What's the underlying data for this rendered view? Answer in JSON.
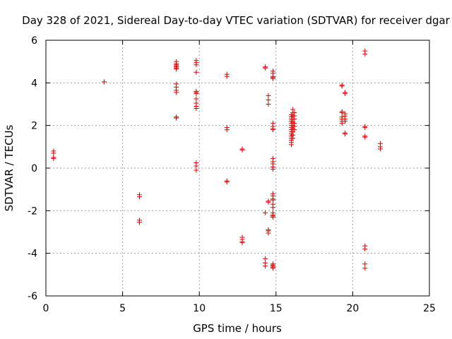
{
  "chart_data": {
    "type": "scatter",
    "title": "Day 328 of 2021, Sidereal Day-to-day VTEC variation (SDTVAR) for receiver dgar",
    "xlabel": "GPS time / hours",
    "ylabel": "SDTVAR / TECUs",
    "xlim": [
      0,
      25
    ],
    "ylim": [
      -6,
      6
    ],
    "xticks": [
      "0",
      "5",
      "10",
      "15",
      "20",
      "25"
    ],
    "yticks": [
      "-6",
      "-4",
      "-2",
      "0",
      "2",
      "4",
      "6"
    ],
    "grid": true,
    "marker": "plus",
    "color": "#e00000",
    "series": [
      {
        "name": "SDTVAR",
        "points": [
          [
            0.5,
            0.8
          ],
          [
            0.5,
            0.7
          ],
          [
            0.5,
            0.5
          ],
          [
            0.5,
            0.45
          ],
          [
            3.8,
            4.05
          ],
          [
            6.1,
            -1.25
          ],
          [
            6.1,
            -1.35
          ],
          [
            6.1,
            -2.45
          ],
          [
            6.1,
            -2.55
          ],
          [
            8.5,
            5.0
          ],
          [
            8.5,
            4.9
          ],
          [
            8.5,
            4.85
          ],
          [
            8.5,
            4.8
          ],
          [
            8.5,
            4.75
          ],
          [
            8.5,
            4.7
          ],
          [
            8.5,
            4.65
          ],
          [
            8.5,
            3.95
          ],
          [
            8.5,
            3.8
          ],
          [
            8.5,
            3.65
          ],
          [
            8.5,
            3.55
          ],
          [
            8.5,
            2.4
          ],
          [
            8.5,
            2.35
          ],
          [
            9.8,
            5.05
          ],
          [
            9.8,
            4.95
          ],
          [
            9.8,
            4.85
          ],
          [
            9.8,
            4.5
          ],
          [
            9.8,
            3.6
          ],
          [
            9.8,
            3.55
          ],
          [
            9.8,
            3.5
          ],
          [
            9.8,
            3.25
          ],
          [
            9.8,
            3.05
          ],
          [
            9.8,
            2.9
          ],
          [
            9.8,
            2.8
          ],
          [
            9.8,
            0.25
          ],
          [
            9.8,
            0.1
          ],
          [
            9.8,
            -0.1
          ],
          [
            11.8,
            4.4
          ],
          [
            11.8,
            4.3
          ],
          [
            11.8,
            1.9
          ],
          [
            11.8,
            1.8
          ],
          [
            11.8,
            -0.6
          ],
          [
            11.8,
            -0.65
          ],
          [
            12.8,
            0.9
          ],
          [
            12.8,
            0.85
          ],
          [
            12.8,
            -3.25
          ],
          [
            12.8,
            -3.35
          ],
          [
            12.8,
            -3.45
          ],
          [
            12.8,
            -3.5
          ],
          [
            14.3,
            4.75
          ],
          [
            14.3,
            4.7
          ],
          [
            14.3,
            -2.1
          ],
          [
            14.3,
            -4.25
          ],
          [
            14.3,
            -4.45
          ],
          [
            14.3,
            -4.6
          ],
          [
            14.5,
            3.4
          ],
          [
            14.5,
            3.2
          ],
          [
            14.5,
            3.0
          ],
          [
            14.5,
            -1.55
          ],
          [
            14.5,
            -1.6
          ],
          [
            14.5,
            -2.9
          ],
          [
            14.5,
            -2.95
          ],
          [
            14.5,
            -3.05
          ],
          [
            14.8,
            4.55
          ],
          [
            14.8,
            4.45
          ],
          [
            14.8,
            4.3
          ],
          [
            14.8,
            4.25
          ],
          [
            14.8,
            4.2
          ],
          [
            14.8,
            2.1
          ],
          [
            14.8,
            1.95
          ],
          [
            14.8,
            1.85
          ],
          [
            14.8,
            1.8
          ],
          [
            14.8,
            0.45
          ],
          [
            14.8,
            0.3
          ],
          [
            14.8,
            0.2
          ],
          [
            14.8,
            0.05
          ],
          [
            14.8,
            -0.05
          ],
          [
            14.8,
            -1.2
          ],
          [
            14.8,
            -1.3
          ],
          [
            14.8,
            -1.45
          ],
          [
            14.8,
            -1.5
          ],
          [
            14.8,
            -1.7
          ],
          [
            14.8,
            -1.85
          ],
          [
            14.8,
            -2.1
          ],
          [
            14.8,
            -2.2
          ],
          [
            14.8,
            -2.25
          ],
          [
            14.8,
            -2.3
          ],
          [
            14.8,
            -4.5
          ],
          [
            14.8,
            -4.55
          ],
          [
            14.8,
            -4.6
          ],
          [
            14.8,
            -4.65
          ],
          [
            14.8,
            -4.7
          ],
          [
            16.0,
            2.5
          ],
          [
            16.0,
            2.4
          ],
          [
            16.0,
            2.3
          ],
          [
            16.0,
            2.2
          ],
          [
            16.0,
            2.1
          ],
          [
            16.0,
            2.0
          ],
          [
            16.0,
            1.9
          ],
          [
            16.0,
            1.8
          ],
          [
            16.0,
            1.7
          ],
          [
            16.0,
            1.6
          ],
          [
            16.0,
            1.5
          ],
          [
            16.0,
            1.4
          ],
          [
            16.0,
            1.3
          ],
          [
            16.0,
            1.2
          ],
          [
            16.0,
            1.1
          ],
          [
            16.1,
            2.75
          ],
          [
            16.1,
            2.6
          ],
          [
            16.1,
            2.45
          ],
          [
            16.1,
            2.3
          ],
          [
            16.1,
            2.15
          ],
          [
            16.1,
            2.0
          ],
          [
            16.1,
            1.85
          ],
          [
            16.1,
            1.7
          ],
          [
            16.1,
            1.55
          ],
          [
            16.1,
            1.4
          ],
          [
            16.2,
            2.6
          ],
          [
            16.2,
            2.45
          ],
          [
            16.2,
            2.3
          ],
          [
            16.2,
            2.1
          ],
          [
            16.2,
            1.95
          ],
          [
            16.2,
            1.8
          ],
          [
            19.3,
            3.9
          ],
          [
            19.3,
            3.85
          ],
          [
            19.3,
            2.65
          ],
          [
            19.3,
            2.6
          ],
          [
            19.3,
            2.4
          ],
          [
            19.3,
            2.3
          ],
          [
            19.3,
            2.2
          ],
          [
            19.3,
            2.1
          ],
          [
            19.5,
            3.55
          ],
          [
            19.5,
            3.5
          ],
          [
            19.5,
            2.55
          ],
          [
            19.5,
            2.45
          ],
          [
            19.5,
            2.3
          ],
          [
            19.5,
            2.2
          ],
          [
            19.5,
            1.65
          ],
          [
            19.5,
            1.6
          ],
          [
            20.8,
            5.5
          ],
          [
            20.8,
            5.35
          ],
          [
            20.8,
            1.95
          ],
          [
            20.8,
            1.9
          ],
          [
            20.8,
            1.5
          ],
          [
            20.8,
            1.45
          ],
          [
            20.8,
            -3.65
          ],
          [
            20.8,
            -3.8
          ],
          [
            20.8,
            -4.5
          ],
          [
            20.8,
            -4.7
          ],
          [
            21.8,
            1.15
          ],
          [
            21.8,
            1.0
          ],
          [
            21.8,
            0.9
          ]
        ]
      }
    ]
  }
}
